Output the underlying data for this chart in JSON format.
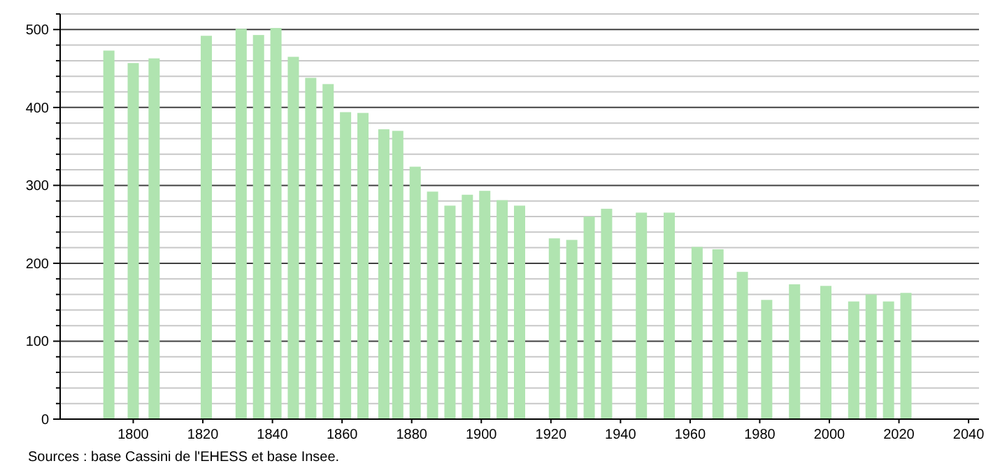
{
  "chart_data": {
    "type": "bar",
    "x": [
      1793,
      1800,
      1806,
      1821,
      1831,
      1836,
      1841,
      1846,
      1851,
      1856,
      1861,
      1866,
      1872,
      1876,
      1881,
      1886,
      1891,
      1896,
      1901,
      1906,
      1911,
      1921,
      1926,
      1931,
      1936,
      1946,
      1954,
      1962,
      1968,
      1975,
      1982,
      1990,
      1999,
      2007,
      2012,
      2017,
      2022
    ],
    "values": [
      473,
      457,
      463,
      492,
      501,
      493,
      502,
      465,
      438,
      430,
      394,
      393,
      372,
      370,
      324,
      292,
      274,
      288,
      293,
      281,
      274,
      232,
      230,
      260,
      270,
      265,
      265,
      221,
      218,
      189,
      153,
      173,
      171,
      151,
      160,
      151,
      162
    ],
    "color": "#b0e4b0",
    "xlim": [
      1779,
      2043
    ],
    "xticks": [
      1800,
      1820,
      1840,
      1860,
      1880,
      1900,
      1920,
      1940,
      1960,
      1980,
      2000,
      2020,
      2040
    ],
    "ylim": [
      0,
      520
    ],
    "yticks": [
      0,
      {
        "value": 20,
        "label": null
      },
      {
        "value": 40,
        "label": null
      },
      {
        "value": 60,
        "label": null
      },
      {
        "value": 80,
        "label": null
      },
      100,
      {
        "value": 120,
        "label": null
      },
      {
        "value": 140,
        "label": null
      },
      {
        "value": 160,
        "label": null
      },
      {
        "value": 180,
        "label": null
      },
      200,
      {
        "value": 220,
        "label": null
      },
      {
        "value": 240,
        "label": null
      },
      {
        "value": 260,
        "label": null
      },
      {
        "value": 280,
        "label": null
      },
      300,
      {
        "value": 320,
        "label": null
      },
      {
        "value": 340,
        "label": null
      },
      {
        "value": 360,
        "label": null
      },
      {
        "value": 380,
        "label": null
      },
      400,
      {
        "value": 420,
        "label": null
      },
      {
        "value": 440,
        "label": null
      },
      {
        "value": 460,
        "label": null
      },
      {
        "value": 480,
        "label": null
      },
      500,
      {
        "value": 520,
        "label": null
      }
    ],
    "grid": "y",
    "annotations": [
      "Sources : base Cassini de l'EHESS et base Insee."
    ]
  }
}
